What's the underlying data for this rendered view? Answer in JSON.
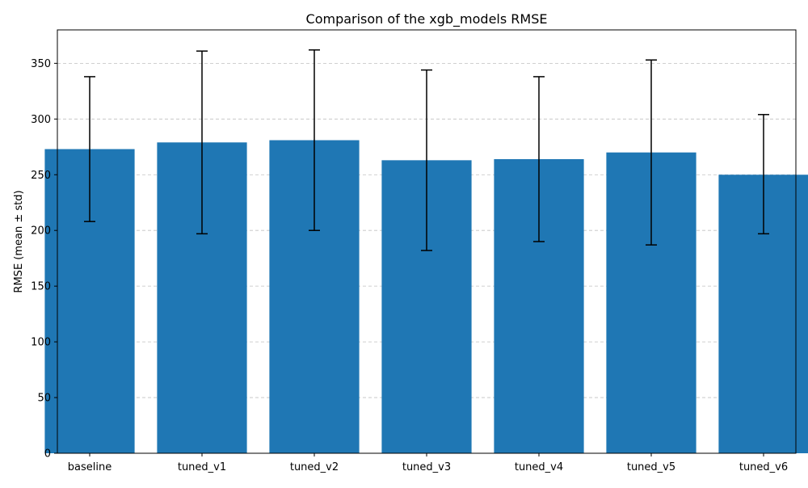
{
  "chart_data": {
    "type": "bar",
    "title": "Comparison of the xgb_models RMSE",
    "xlabel": "",
    "ylabel": "RMSE (mean ± std)",
    "categories": [
      "baseline",
      "tuned_v1",
      "tuned_v2",
      "tuned_v3",
      "tuned_v4",
      "tuned_v5",
      "tuned_v6"
    ],
    "values": [
      273,
      279,
      281,
      263,
      264,
      270,
      250
    ],
    "error_low": [
      208,
      197,
      200,
      182,
      190,
      187,
      197
    ],
    "error_high": [
      338,
      361,
      362,
      344,
      338,
      353,
      304
    ],
    "ylim": [
      0,
      380
    ],
    "yticks": [
      0,
      50,
      100,
      150,
      200,
      250,
      300,
      350
    ],
    "grid": "y-dashed",
    "bar_color": "#1f77b4",
    "error_color": "#000000",
    "grid_color": "#c0c0c0"
  }
}
